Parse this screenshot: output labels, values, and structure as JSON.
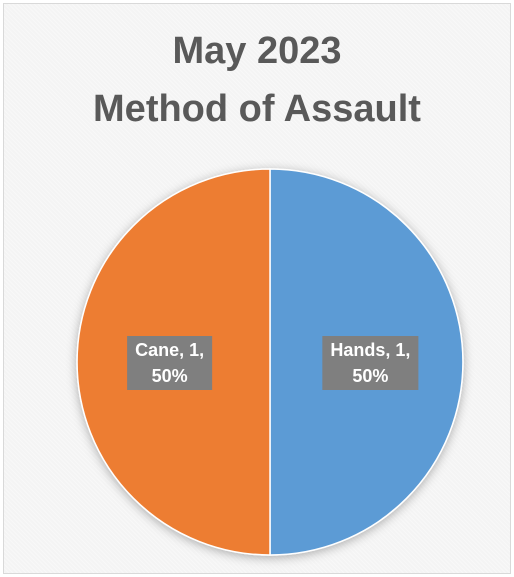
{
  "chart_data": {
    "type": "pie",
    "title": "May 2023\nMethod of Assault",
    "title_lines": [
      "May 2023",
      "Method of Assault"
    ],
    "categories": [
      "Hands",
      "Cane"
    ],
    "values": [
      1,
      1
    ],
    "percentages": [
      "50%",
      "50%"
    ],
    "data_labels": [
      {
        "line1": "Hands, 1,",
        "line2": "50%"
      },
      {
        "line1": "Cane, 1,",
        "line2": "50%"
      }
    ],
    "colors": [
      "#5B9BD5",
      "#ED7D31"
    ],
    "label_box_color": "#7F7F7F",
    "legend": "none"
  }
}
